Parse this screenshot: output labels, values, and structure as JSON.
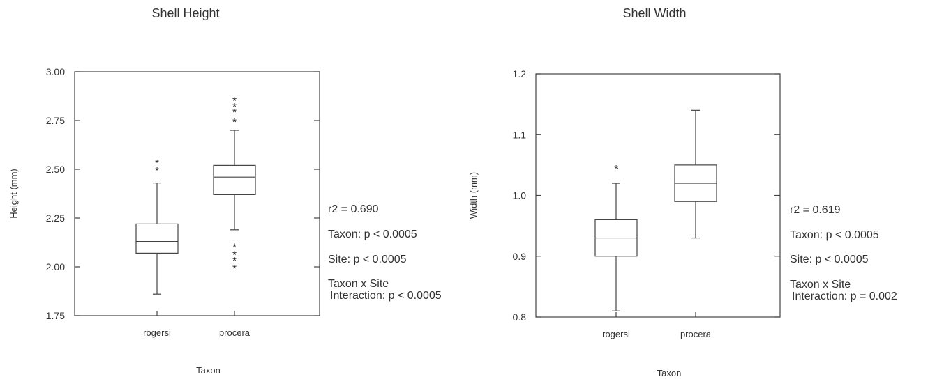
{
  "chart_data": [
    {
      "type": "box",
      "title": "Shell Height",
      "xlabel": "Taxon",
      "ylabel": "Height (mm)",
      "ylim": [
        1.75,
        3.0
      ],
      "yticks": [
        "3.00",
        "2.75",
        "2.50",
        "2.25",
        "2.00",
        "1.75"
      ],
      "ytick_values": [
        3.0,
        2.75,
        2.5,
        2.25,
        2.0,
        1.75
      ],
      "categories": [
        "rogersi",
        "procera"
      ],
      "boxes": [
        {
          "category": "rogersi",
          "whisker_low": 1.86,
          "q1": 2.07,
          "median": 2.13,
          "q3": 2.22,
          "whisker_high": 2.43,
          "outliers": [
            2.51,
            2.55
          ]
        },
        {
          "category": "procera",
          "whisker_low": 2.19,
          "q1": 2.37,
          "median": 2.46,
          "q3": 2.52,
          "whisker_high": 2.7,
          "outliers": [
            2.01,
            2.05,
            2.08,
            2.12,
            2.76,
            2.81,
            2.84,
            2.87
          ]
        }
      ],
      "stats": [
        "r2 = 0.690",
        "Taxon: p < 0.0005",
        "Site:  p < 0.0005",
        "Taxon x Site",
        "Interaction:  p < 0.0005"
      ]
    },
    {
      "type": "box",
      "title": "Shell Width",
      "xlabel": "Taxon",
      "ylabel": "Width (mm)",
      "ylim": [
        0.8,
        1.2
      ],
      "yticks": [
        "1.2",
        "1.1",
        "1.0",
        "0.9",
        "0.8"
      ],
      "ytick_values": [
        1.2,
        1.1,
        1.0,
        0.9,
        0.8
      ],
      "categories": [
        "rogersi",
        "procera"
      ],
      "boxes": [
        {
          "category": "rogersi",
          "whisker_low": 0.81,
          "q1": 0.9,
          "median": 0.93,
          "q3": 0.96,
          "whisker_high": 1.02,
          "outliers": [
            1.05
          ]
        },
        {
          "category": "procera",
          "whisker_low": 0.93,
          "q1": 0.99,
          "median": 1.02,
          "q3": 1.05,
          "whisker_high": 1.14,
          "outliers": []
        }
      ],
      "stats": [
        "r2 = 0.619",
        "Taxon: p < 0.0005",
        "Site:  p < 0.0005",
        "Taxon x Site",
        "Interaction:  p = 0.002"
      ]
    }
  ]
}
